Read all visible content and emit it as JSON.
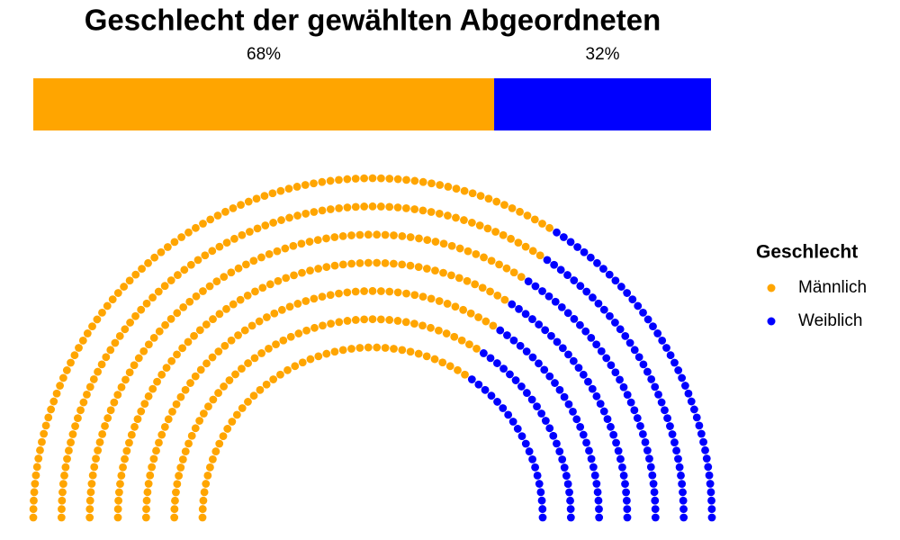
{
  "chart_data": {
    "type": "parliament",
    "title": "Geschlecht der gewählten Abgeordneten",
    "legend_title": "Geschlecht",
    "series": [
      {
        "name": "Männlich",
        "color": "#FFA500",
        "values": [
          68
        ],
        "value_labels": [
          "68%"
        ]
      },
      {
        "name": "Weiblich",
        "color": "#0000FF",
        "values": [
          32
        ],
        "value_labels": [
          "32%"
        ]
      }
    ]
  }
}
